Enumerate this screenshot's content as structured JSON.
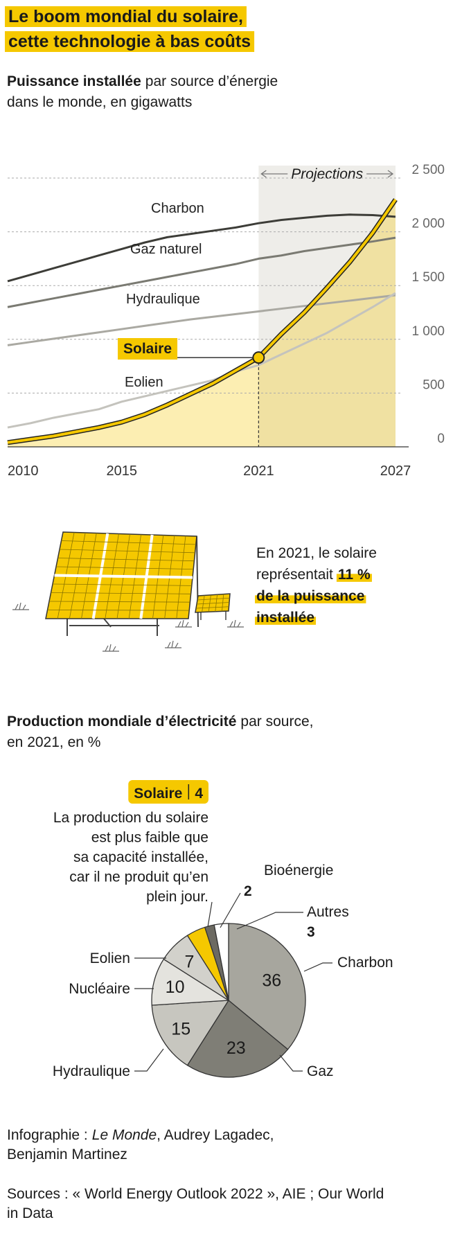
{
  "title_lines": [
    "Le boom mondial du solaire,",
    "cette technologie à bas coûts"
  ],
  "section1": {
    "subtitle_bold": "Puissance installée",
    "subtitle_lines": [
      "par source d’énergie",
      "dans le monde, en gigawatts"
    ]
  },
  "chart_data": [
    {
      "type": "line",
      "x": [
        2010,
        2011,
        2012,
        2013,
        2014,
        2015,
        2016,
        2017,
        2018,
        2019,
        2020,
        2021,
        2022,
        2023,
        2024,
        2025,
        2026,
        2027
      ],
      "xlim": [
        2010,
        2027
      ],
      "xticks": [
        2010,
        2015,
        2021,
        2027
      ],
      "ylim": [
        0,
        2500
      ],
      "yticks": [
        0,
        500,
        {
          "value": 1000,
          "label": "1 000"
        },
        {
          "value": 1500,
          "label": "1 500"
        },
        {
          "value": 2000,
          "label": "2 000"
        },
        {
          "value": 2500,
          "label": "2 500"
        }
      ],
      "grid": true,
      "projection_label": "Projections",
      "projection_range": [
        2021,
        2027
      ],
      "series": [
        {
          "name": "Charbon",
          "color": "#3d3d38",
          "values": [
            1540,
            1600,
            1660,
            1720,
            1780,
            1840,
            1900,
            1950,
            1980,
            2010,
            2040,
            2080,
            2110,
            2130,
            2150,
            2160,
            2155,
            2140
          ]
        },
        {
          "name": "Gaz naturel",
          "color": "#7a7a72",
          "values": [
            1300,
            1340,
            1380,
            1420,
            1460,
            1500,
            1540,
            1580,
            1620,
            1660,
            1700,
            1750,
            1780,
            1820,
            1850,
            1880,
            1910,
            1945
          ]
        },
        {
          "name": "Hydraulique",
          "color": "#aaa9a2",
          "values": [
            945,
            975,
            1005,
            1035,
            1065,
            1095,
            1125,
            1155,
            1185,
            1210,
            1235,
            1260,
            1285,
            1310,
            1335,
            1360,
            1385,
            1410
          ]
        },
        {
          "name": "Eolien",
          "color": "#c4c3bd",
          "values": [
            180,
            220,
            270,
            310,
            350,
            420,
            470,
            520,
            570,
            620,
            700,
            760,
            860,
            960,
            1060,
            1180,
            1300,
            1430
          ]
        },
        {
          "name": "Solaire",
          "color": "#f5c800",
          "values": [
            40,
            70,
            100,
            140,
            180,
            230,
            300,
            390,
            490,
            590,
            710,
            830,
            1050,
            1250,
            1480,
            1720,
            1990,
            2300
          ]
        }
      ]
    },
    {
      "type": "pie",
      "categories": [
        "Charbon",
        "Gaz",
        "Hydraulique",
        "Nucléaire",
        "Eolien",
        "Solaire",
        "Bioénergie",
        "Autres"
      ],
      "values": [
        36,
        23,
        15,
        10,
        7,
        4,
        2,
        3
      ],
      "colors": [
        "#a7a69e",
        "#7f7e76",
        "#c7c6bf",
        "#e4e3de",
        "#d2d1cb",
        "#f5c800",
        "#6c6a62",
        "#ffffff"
      ]
    }
  ],
  "callout": {
    "lines": [
      "En 2021, le solaire",
      "représentait"
    ],
    "highlight_lines": [
      "11 %",
      "de la puissance",
      "installée"
    ]
  },
  "section2": {
    "subtitle_bold": "Production mondiale d’électricité",
    "subtitle_lines": [
      "par source,",
      "en 2021, en %"
    ]
  },
  "solar_note_lines": [
    "La production du solaire",
    "est plus faible que",
    "sa capacité installée,",
    "car il ne produit qu’en",
    "plein jour."
  ],
  "credit": {
    "prefix": "Infographie :",
    "publication": "Le Monde",
    "rest_lines": [
      ", Audrey Lagadec,",
      "Benjamin Martinez"
    ]
  },
  "sources_lines": [
    "Sources : « World Energy Outlook 2022 », AIE ; Our World",
    "in Data"
  ]
}
